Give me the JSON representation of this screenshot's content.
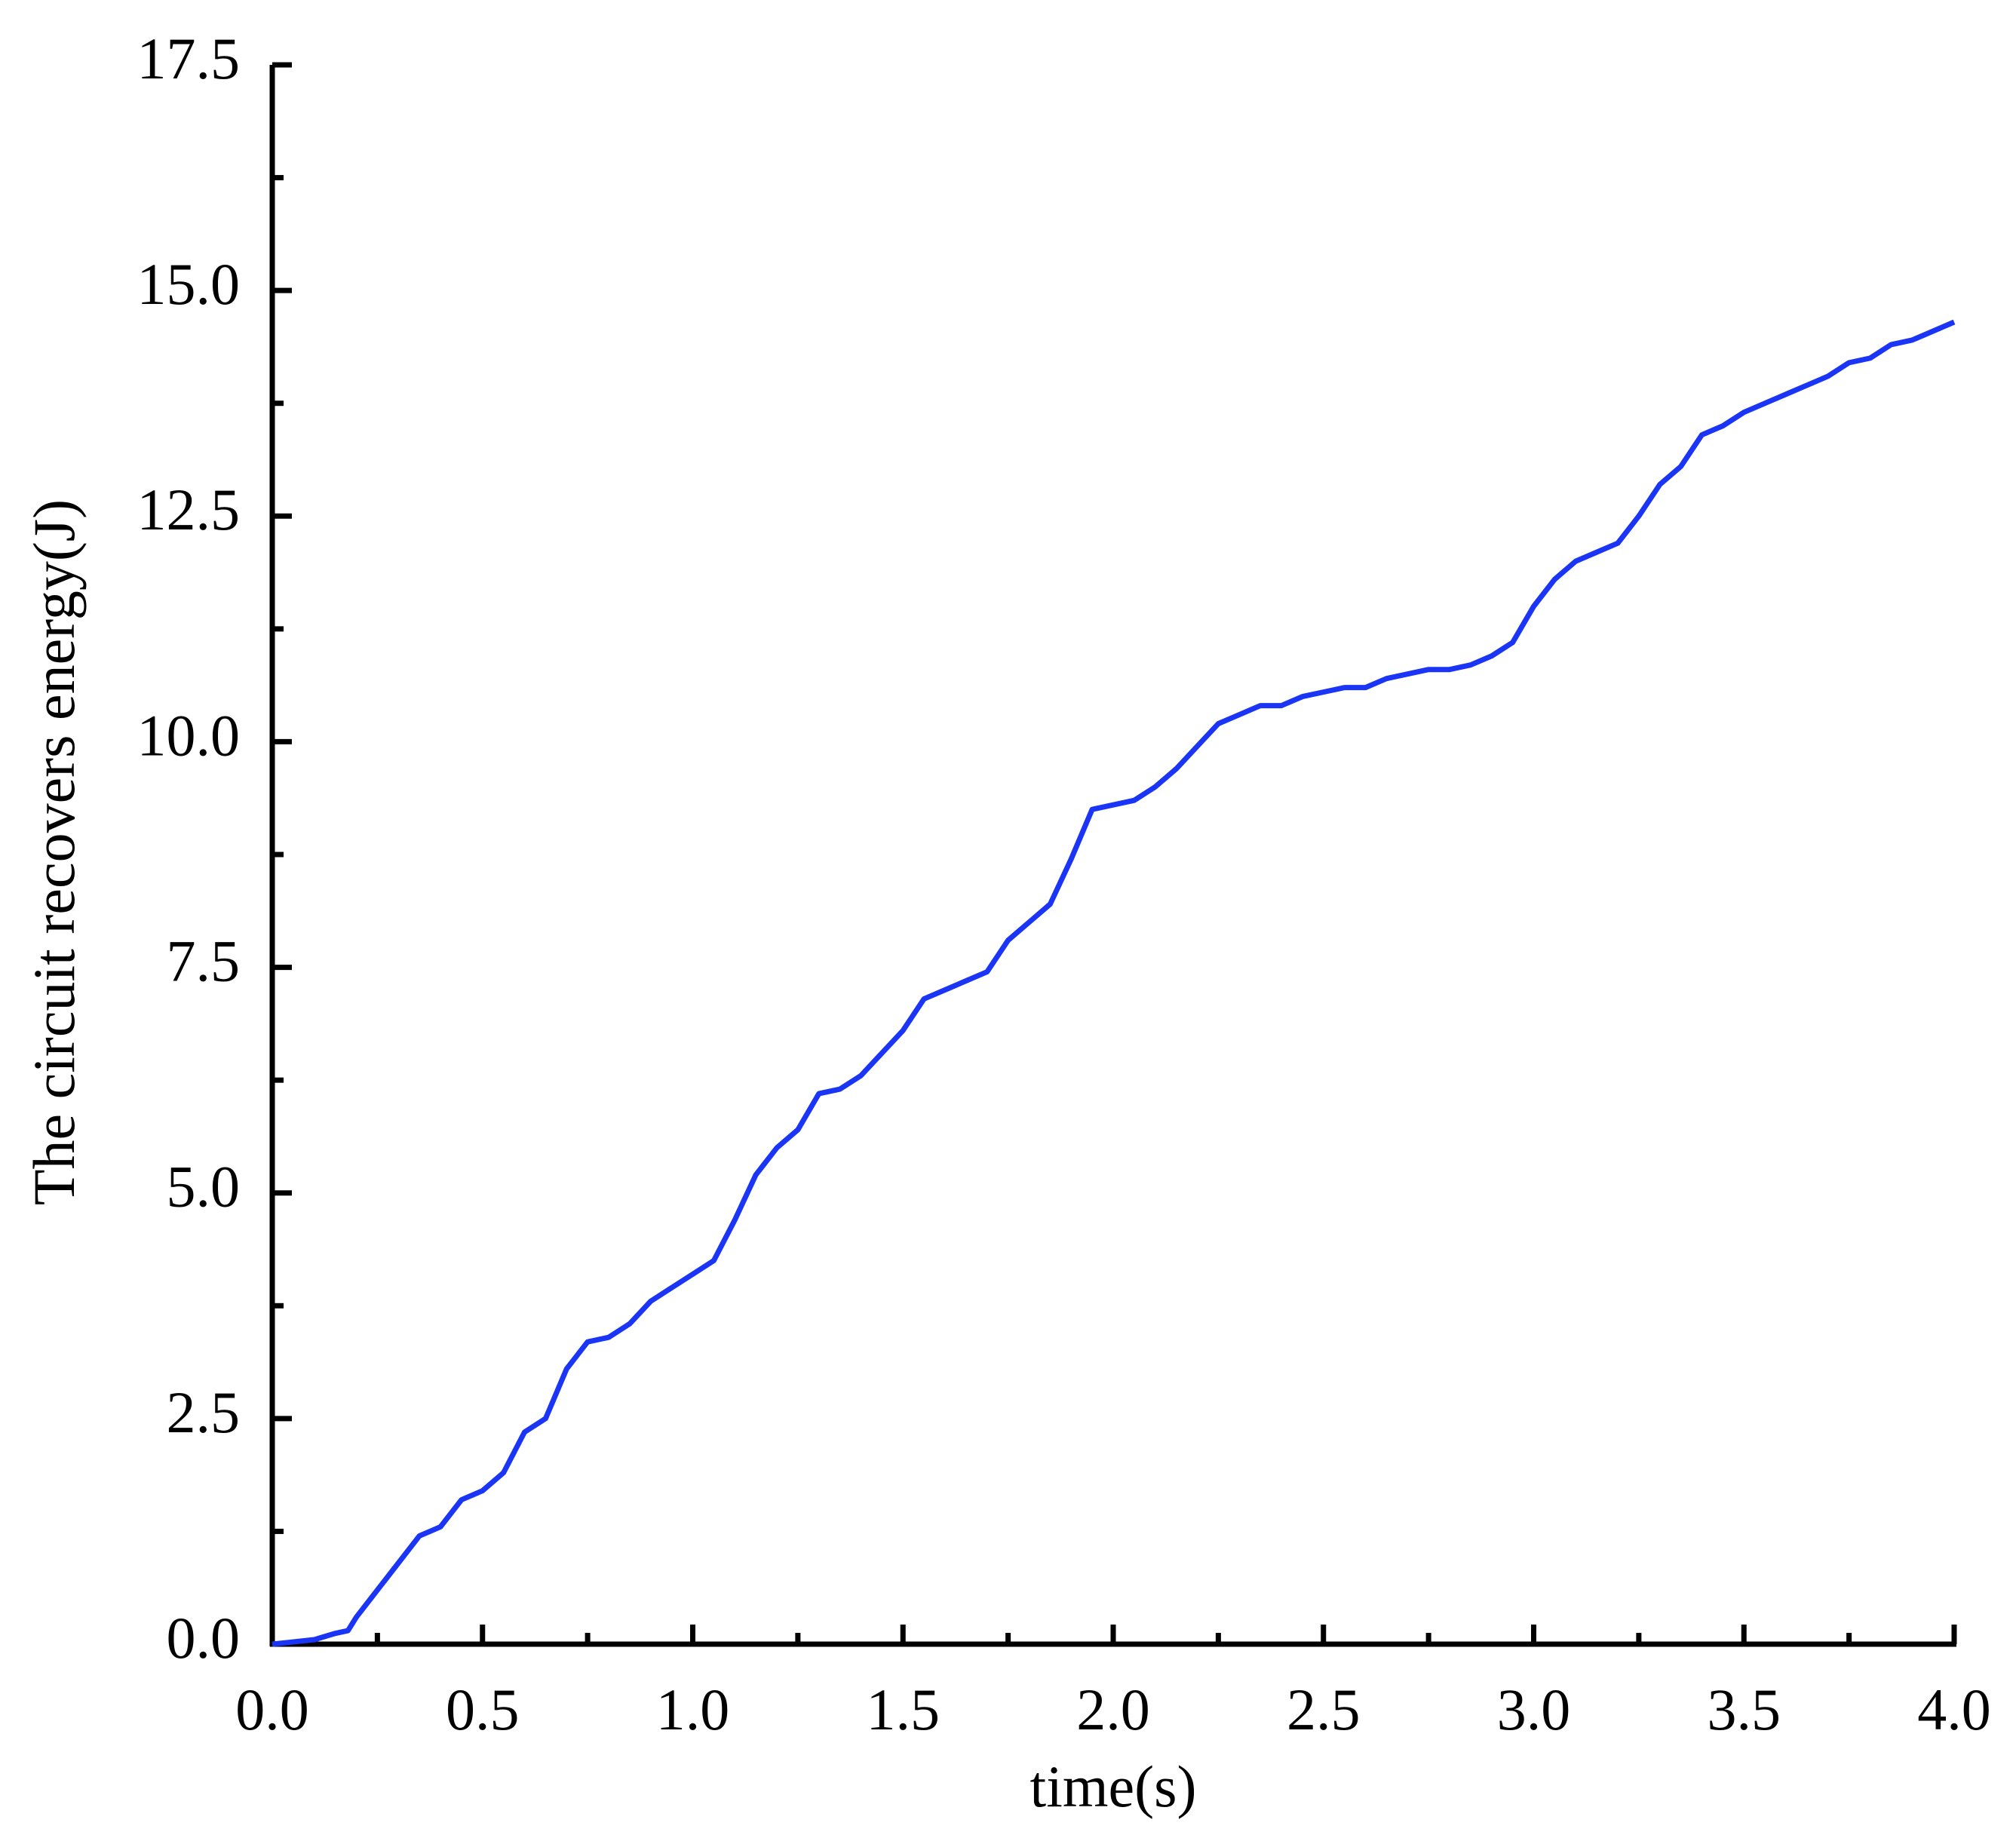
{
  "chart_data": {
    "type": "line",
    "xlabel": "time(s)",
    "ylabel": "The circuit recovers energy(J)",
    "x": [
      0,
      0.1,
      0.15,
      0.18,
      0.2,
      0.25,
      0.3,
      0.35,
      0.4,
      0.45,
      0.5,
      0.55,
      0.6,
      0.65,
      0.7,
      0.75,
      0.8,
      0.85,
      0.9,
      0.95,
      1.0,
      1.05,
      1.1,
      1.15,
      1.2,
      1.25,
      1.3,
      1.35,
      1.4,
      1.45,
      1.5,
      1.55,
      1.6,
      1.65,
      1.7,
      1.75,
      1.8,
      1.85,
      1.9,
      1.95,
      2.0,
      2.05,
      2.1,
      2.15,
      2.2,
      2.25,
      2.3,
      2.35,
      2.4,
      2.45,
      2.5,
      2.55,
      2.6,
      2.65,
      2.7,
      2.75,
      2.8,
      2.85,
      2.9,
      2.95,
      3.0,
      3.05,
      3.1,
      3.15,
      3.2,
      3.25,
      3.3,
      3.35,
      3.4,
      3.45,
      3.5,
      3.55,
      3.6,
      3.65,
      3.7,
      3.75,
      3.8,
      3.85,
      3.9,
      3.95,
      4.0
    ],
    "series": [
      {
        "color": "#1a35f5",
        "values": [
          0,
          0.05,
          0.12,
          0.15,
          0.3,
          0.6,
          0.9,
          1.2,
          1.3,
          1.6,
          1.7,
          1.9,
          2.35,
          2.5,
          3.05,
          3.35,
          3.4,
          3.55,
          3.8,
          3.95,
          4.1,
          4.25,
          4.7,
          5.2,
          5.5,
          5.7,
          6.1,
          6.15,
          6.3,
          6.55,
          6.8,
          7.15,
          7.25,
          7.35,
          7.45,
          7.8,
          8.0,
          8.2,
          8.7,
          9.25,
          9.3,
          9.35,
          9.5,
          9.7,
          9.95,
          10.2,
          10.3,
          10.4,
          10.4,
          10.5,
          10.55,
          10.6,
          10.6,
          10.7,
          10.75,
          10.8,
          10.8,
          10.85,
          10.95,
          11.1,
          11.5,
          11.8,
          12.0,
          12.1,
          12.2,
          12.5,
          12.85,
          13.05,
          13.4,
          13.5,
          13.65,
          13.75,
          13.85,
          13.95,
          14.05,
          14.2,
          14.25,
          14.4,
          14.45,
          14.55,
          14.65
        ]
      }
    ],
    "xlim": [
      0,
      4
    ],
    "ylim": [
      0,
      17.5
    ],
    "xticks": [
      {
        "value": 0,
        "label": "0.0"
      },
      0.5,
      {
        "value": 1,
        "label": "1.0"
      },
      1.5,
      {
        "value": 2,
        "label": "2.0"
      },
      2.5,
      {
        "value": 3,
        "label": "3.0"
      },
      3.5,
      {
        "value": 4,
        "label": "4.0"
      }
    ],
    "xminorticks": [
      0.25,
      0.75,
      1.25,
      1.75,
      2.25,
      2.75,
      3.25,
      3.75
    ],
    "yticks": [
      {
        "value": 0,
        "label": "0.0"
      },
      2.5,
      {
        "value": 5,
        "label": "5.0"
      },
      7.5,
      {
        "value": 10,
        "label": "10.0"
      },
      12.5,
      {
        "value": 15,
        "label": "15.0"
      },
      17.5
    ],
    "yminorticks": [
      1.25,
      3.75,
      6.25,
      8.75,
      11.25,
      13.75,
      16.25
    ]
  }
}
